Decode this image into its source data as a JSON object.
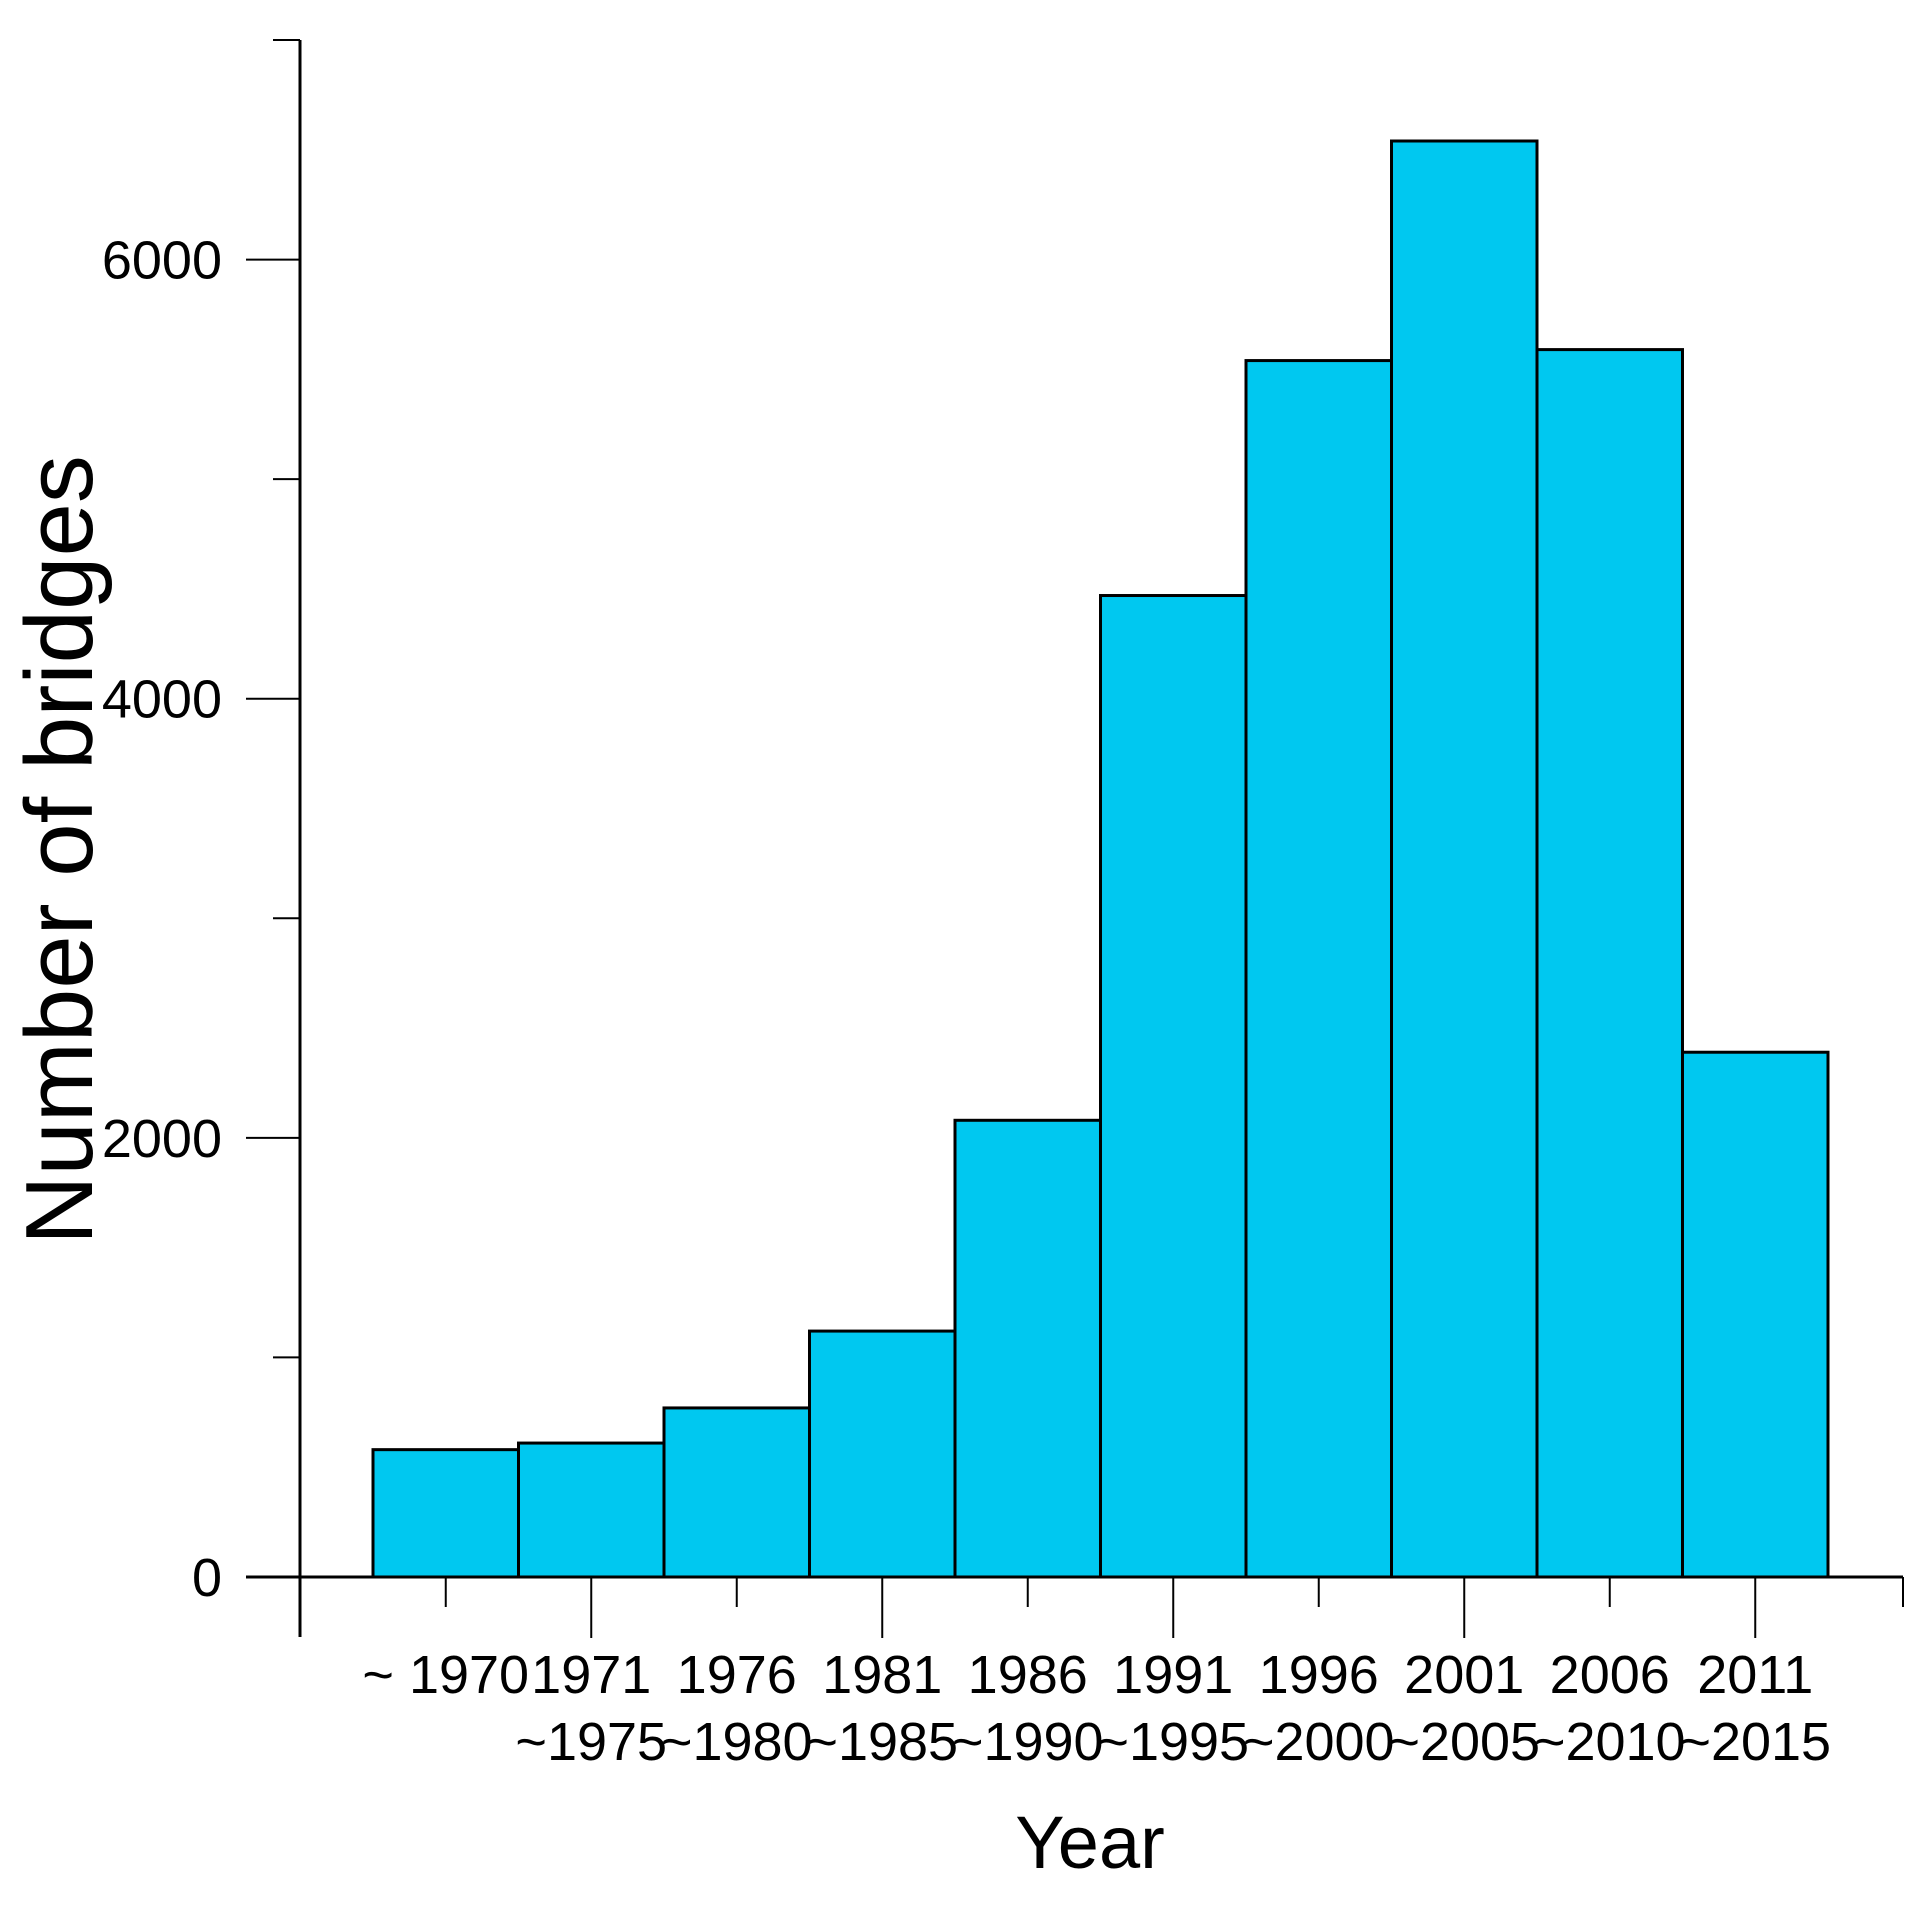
{
  "chart_data": {
    "type": "bar",
    "title": "",
    "xlabel": "Year",
    "ylabel": "Number of bridges",
    "categories": [
      "~1970",
      "1971~1975",
      "1976~1980",
      "1981~1985",
      "1986~1990",
      "1991~1995",
      "1996~2000",
      "2001~2005",
      "2006~2010",
      "2011~2015"
    ],
    "x_tick_labels_line1": [
      "~ 1970",
      "1971",
      "1976",
      "1981",
      "1986",
      "1991",
      "1996",
      "2001",
      "2006",
      "2011"
    ],
    "x_tick_labels_line2": [
      "",
      "~1975",
      "~1980",
      "~1985",
      "~1990",
      "~1995",
      "~2000",
      "~2005",
      "~2010",
      "~2015"
    ],
    "values": [
      580,
      610,
      770,
      1120,
      2080,
      4470,
      5540,
      6540,
      5590,
      2390
    ],
    "ylim": [
      0,
      7000
    ],
    "yticks_major": [
      0,
      2000,
      4000,
      6000
    ],
    "yticks_minor": [
      1000,
      3000,
      5000,
      7000
    ],
    "grid": false,
    "legend": null,
    "bar_gap": 0,
    "colors": {
      "bar_fill": "#00C8F0",
      "bar_border": "#000000",
      "axis": "#000000",
      "text": "#000000",
      "background": "#FFFFFF"
    }
  }
}
